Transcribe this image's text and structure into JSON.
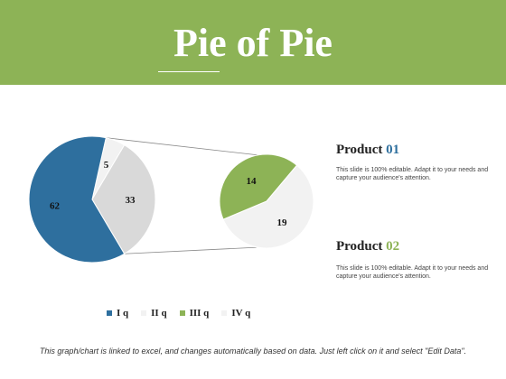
{
  "header": {
    "title": "Pie of Pie"
  },
  "products": [
    {
      "name": "Product",
      "number": "01",
      "color": "#2e6f9e",
      "description": "This slide is 100% editable. Adapt it to your needs and capture your audience's attention."
    },
    {
      "name": "Product",
      "number": "02",
      "color": "#8db356",
      "description": "This slide is 100% editable. Adapt it to your needs and capture your audience's attention."
    }
  ],
  "footer": {
    "note": "This graph/chart is linked to excel, and changes automatically based on data. Just left click on it and select \"Edit Data\"."
  },
  "chart_data": {
    "type": "pie",
    "subtype": "pie-of-pie",
    "main_pie": {
      "slices": [
        {
          "label": "5",
          "value": 5,
          "color": "#f2f2f2"
        },
        {
          "label": "33",
          "value": 33,
          "color": "#d9d9d9"
        },
        {
          "label": "62",
          "value": 62,
          "color": "#2e6f9e"
        }
      ]
    },
    "secondary_pie": {
      "slices": [
        {
          "label": "19",
          "value": 19,
          "color": "#f2f2f2"
        },
        {
          "label": "14",
          "value": 14,
          "color": "#8db356"
        }
      ]
    },
    "legend": [
      {
        "label": "I q",
        "color": "#2e6f9e"
      },
      {
        "label": "II q",
        "color": "#f2f2f2"
      },
      {
        "label": "III q",
        "color": "#8db356"
      },
      {
        "label": "IV q",
        "color": "#f2f2f2"
      }
    ],
    "legend_position": "bottom"
  }
}
